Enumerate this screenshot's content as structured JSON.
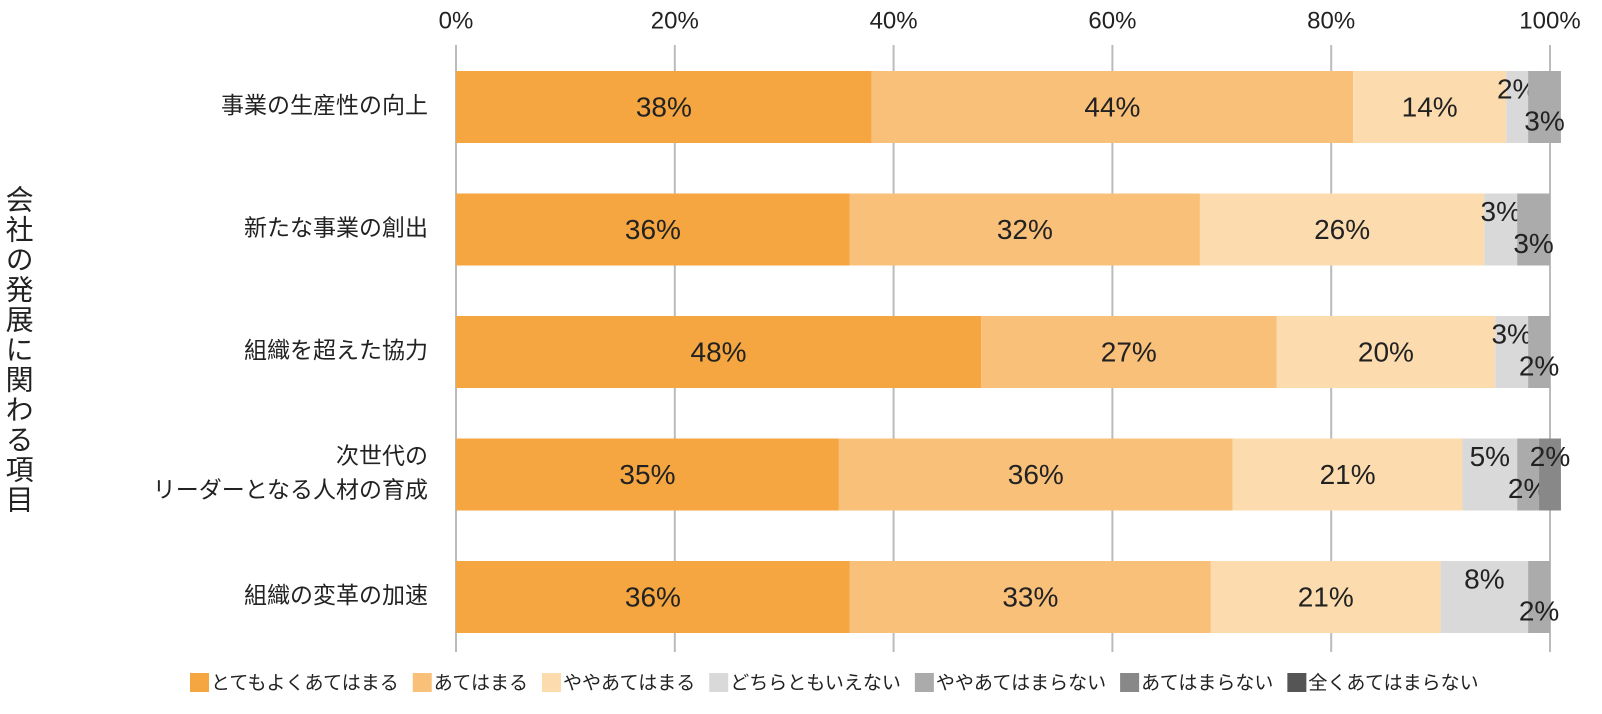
{
  "chart_data": {
    "type": "stacked-barh",
    "ylabel": "会社の発展に関わる項目",
    "categories": [
      "事業の生産性の向上",
      "新たな事業の創出",
      "組織を超えた協力",
      "次世代の\nリーダーとなる人材の育成",
      "組織の変革の加速"
    ],
    "xlim": [
      0,
      100
    ],
    "xticks": [
      {
        "value": 0,
        "label": "0%"
      },
      {
        "value": 20,
        "label": "20%"
      },
      {
        "value": 40,
        "label": "40%"
      },
      {
        "value": 60,
        "label": "60%"
      },
      {
        "value": 80,
        "label": "80%"
      },
      {
        "value": 100,
        "label": "100%"
      }
    ],
    "grid": true,
    "legend": "bottom",
    "series": [
      {
        "name": "とてもよくあてはまる",
        "color": "#f5a640",
        "values": [
          38,
          36,
          48,
          35,
          36
        ],
        "value_labels": [
          "38%",
          "36%",
          "48%",
          "35%",
          "36%"
        ]
      },
      {
        "name": "あてはまる",
        "color": "#f9c07a",
        "values": [
          44,
          32,
          27,
          36,
          33
        ],
        "value_labels": [
          "44%",
          "32%",
          "27%",
          "36%",
          "33%"
        ]
      },
      {
        "name": "ややあてはまる",
        "color": "#fcdcae",
        "values": [
          14,
          26,
          20,
          21,
          21
        ],
        "value_labels": [
          "14%",
          "26%",
          "20%",
          "21%",
          "21%"
        ]
      },
      {
        "name": "どちらともいえない",
        "color": "#d9d9d9",
        "values": [
          2,
          3,
          3,
          5,
          8
        ],
        "value_labels": [
          "2%",
          "3%",
          "3%",
          "5%",
          "8%"
        ]
      },
      {
        "name": "ややあてはまらない",
        "color": "#ababab",
        "values": [
          3,
          3,
          2,
          2,
          2
        ],
        "value_labels": [
          "3%",
          "3%",
          "2%",
          "2%",
          "2%"
        ]
      },
      {
        "name": "あてはまらない",
        "color": "#888888",
        "values": [
          null,
          null,
          null,
          2,
          null
        ],
        "value_labels": [
          null,
          null,
          null,
          "2%",
          null
        ]
      },
      {
        "name": "全くあてはまらない",
        "color": "#555555",
        "values": [
          null,
          null,
          null,
          null,
          null
        ],
        "value_labels": [
          null,
          null,
          null,
          null,
          null
        ]
      }
    ]
  }
}
